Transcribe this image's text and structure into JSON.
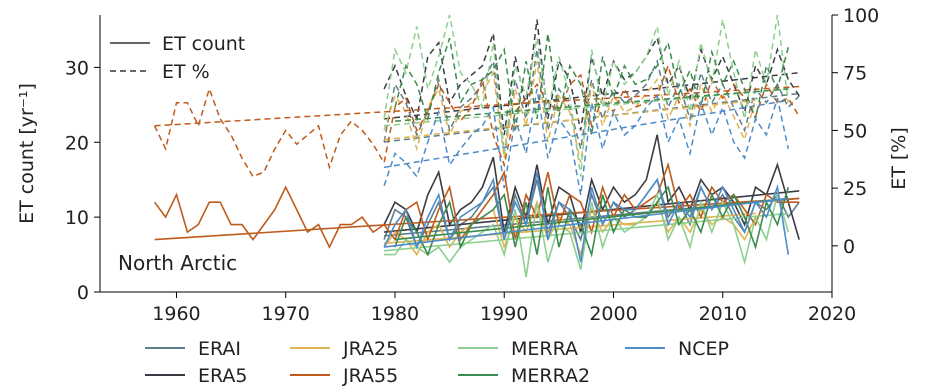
{
  "chart_data": {
    "type": "line",
    "annotation": "North Arctic",
    "left_axis": {
      "label": "ET count [yr⁻¹]",
      "ylim": [
        0,
        37
      ],
      "ticks": [
        "0",
        "10",
        "20",
        "30"
      ]
    },
    "right_axis": {
      "label": "ET [%]",
      "ylim": [
        -20,
        100
      ],
      "ticks": [
        "0",
        "25",
        "50",
        "75",
        "100"
      ]
    },
    "x_axis": {
      "xlim": [
        1953,
        2020
      ],
      "ticks": [
        "1960",
        "1970",
        "1980",
        "1990",
        "2000",
        "2010",
        "2020"
      ]
    },
    "style_legend": [
      {
        "label": "ET count",
        "dash": "solid"
      },
      {
        "label": "ET %",
        "dash": "dashed"
      }
    ],
    "series": [
      {
        "name": "ERAI",
        "color": "#5e7f8a",
        "count": {
          "start": 1979,
          "values": [
            7,
            11,
            10,
            6,
            9,
            12,
            7,
            9,
            10,
            12,
            14,
            7,
            13,
            9,
            15,
            8,
            12,
            10,
            7,
            13,
            9,
            12,
            10,
            11,
            13,
            15,
            10,
            12,
            9,
            14,
            11,
            13,
            10,
            8,
            12,
            11,
            13,
            10,
            12
          ],
          "trend": [
            7.5,
            12.5
          ]
        },
        "percent": {
          "start": 1979,
          "values": [
            45,
            70,
            62,
            48,
            58,
            72,
            50,
            60,
            64,
            70,
            80,
            40,
            72,
            55,
            85,
            50,
            68,
            60,
            42,
            72,
            55,
            68,
            62,
            65,
            70,
            80,
            60,
            70,
            55,
            75,
            62,
            70,
            60,
            50,
            68,
            62,
            70,
            60,
            65
          ],
          "trend": [
            45,
            66
          ]
        }
      },
      {
        "name": "ERA5",
        "color": "#3b3b45",
        "count": {
          "start": 1979,
          "values": [
            9,
            12,
            11,
            8,
            13,
            16,
            9,
            11,
            12,
            14,
            18,
            8,
            14,
            10,
            17,
            9,
            14,
            13,
            8,
            15,
            11,
            14,
            12,
            13,
            15,
            21,
            12,
            14,
            11,
            15,
            13,
            14,
            12,
            9,
            14,
            13,
            17,
            12,
            7
          ],
          "trend": [
            8,
            13.5
          ]
        },
        "percent": {
          "start": 1979,
          "values": [
            68,
            78,
            65,
            55,
            82,
            88,
            62,
            70,
            74,
            78,
            92,
            48,
            82,
            60,
            98,
            55,
            80,
            72,
            50,
            82,
            65,
            80,
            72,
            75,
            82,
            90,
            70,
            78,
            64,
            85,
            72,
            82,
            70,
            58,
            78,
            70,
            85,
            72,
            65
          ],
          "trend": [
            55,
            75
          ]
        }
      },
      {
        "name": "JRA25",
        "color": "#e0b350",
        "count": {
          "start": 1979,
          "values": [
            6,
            8,
            7,
            5,
            8,
            9,
            6,
            8,
            9,
            10,
            11,
            6,
            10,
            8,
            12,
            7,
            10,
            9,
            5,
            11,
            8,
            10,
            9,
            9,
            10,
            12,
            8,
            10,
            8,
            11,
            9,
            10,
            9,
            7,
            10
          ],
          "trend": [
            6.5,
            10.5
          ]
        },
        "percent": {
          "start": 1979,
          "values": [
            50,
            65,
            58,
            42,
            60,
            68,
            48,
            58,
            62,
            66,
            75,
            38,
            68,
            52,
            80,
            45,
            65,
            58,
            36,
            70,
            52,
            65,
            58,
            60,
            66,
            72,
            55,
            65,
            52,
            70,
            58,
            66,
            56,
            46,
            64
          ],
          "trend": [
            46,
            63
          ]
        }
      },
      {
        "name": "JRA55",
        "color": "#bf5b1c",
        "count": {
          "start": 1958,
          "values": [
            12,
            10,
            13,
            8,
            9,
            12,
            12,
            9,
            9,
            7,
            9,
            11,
            14,
            11,
            8,
            9,
            6,
            9,
            9,
            10,
            8,
            9,
            7,
            11,
            12,
            7,
            11,
            14,
            7,
            9,
            11,
            13,
            16,
            7,
            13,
            10,
            16,
            9,
            13,
            12,
            8,
            14,
            10,
            13,
            11,
            12,
            13,
            17,
            11,
            13,
            10,
            14,
            12,
            13,
            11,
            9,
            13,
            12,
            12,
            12
          ],
          "trend": [
            7,
            12.5
          ]
        },
        "percent": {
          "start": 1958,
          "values": [
            52,
            42,
            62,
            62,
            52,
            68,
            55,
            48,
            38,
            30,
            32,
            42,
            50,
            44,
            48,
            52,
            34,
            48,
            54,
            50,
            44,
            36,
            60,
            64,
            50,
            58,
            70,
            62,
            54,
            60,
            72,
            48,
            35,
            58,
            64,
            70,
            62,
            58,
            70,
            74,
            52,
            64,
            58,
            68,
            60,
            62,
            65,
            78,
            62,
            68,
            58,
            72,
            64,
            70,
            64,
            56,
            70,
            62,
            64,
            56
          ],
          "trend": [
            52,
            69
          ]
        }
      },
      {
        "name": "MERRA",
        "color": "#8ccf8e",
        "count": {
          "start": 1979,
          "values": [
            5,
            5,
            7,
            6,
            5,
            6,
            4,
            6,
            7,
            8,
            9,
            5,
            11,
            2,
            12,
            4,
            9,
            8,
            3,
            12,
            6,
            10,
            8,
            9,
            10,
            13,
            7,
            10,
            6,
            12,
            8,
            12,
            9,
            4,
            10,
            7,
            13,
            8
          ],
          "trend": [
            5.5,
            10.5
          ]
        },
        "percent": {
          "start": 1979,
          "values": [
            55,
            85,
            75,
            95,
            68,
            82,
            100,
            75,
            70,
            60,
            88,
            40,
            78,
            65,
            90,
            58,
            82,
            65,
            30,
            85,
            60,
            80,
            70,
            75,
            82,
            95,
            65,
            80,
            58,
            88,
            70,
            98,
            75,
            55,
            85,
            70,
            100,
            62
          ],
          "trend": [
            52,
            68
          ]
        }
      },
      {
        "name": "MERRA2",
        "color": "#3d8a4e",
        "count": {
          "start": 1980,
          "values": [
            6,
            10,
            8,
            5,
            9,
            12,
            6,
            9,
            10,
            11,
            13,
            6,
            12,
            5,
            14,
            6,
            11,
            9,
            5,
            13,
            8,
            11,
            10,
            10,
            12,
            14,
            9,
            11,
            8,
            13,
            10,
            13,
            10,
            6,
            12,
            9,
            14
          ],
          "trend": [
            7,
            12.5
          ]
        },
        "percent": {
          "start": 1980,
          "values": [
            60,
            78,
            70,
            55,
            75,
            90,
            62,
            70,
            72,
            76,
            85,
            50,
            80,
            55,
            92,
            56,
            78,
            70,
            48,
            82,
            64,
            78,
            70,
            72,
            78,
            88,
            66,
            76,
            60,
            84,
            70,
            80,
            68,
            55,
            78,
            68,
            86
          ],
          "trend": [
            54,
            68
          ]
        }
      },
      {
        "name": "NCEP",
        "color": "#4d8cc8",
        "count": {
          "start": 1979,
          "values": [
            6,
            9,
            11,
            6,
            10,
            13,
            7,
            10,
            11,
            12,
            15,
            7,
            12,
            9,
            16,
            7,
            12,
            11,
            4,
            14,
            9,
            12,
            11,
            11,
            13,
            15,
            9,
            12,
            10,
            14,
            11,
            14,
            11,
            8,
            12,
            10,
            14,
            5
          ],
          "trend": [
            6,
            12.5
          ]
        },
        "percent": {
          "start": 1979,
          "values": [
            26,
            40,
            36,
            30,
            45,
            58,
            35,
            42,
            48,
            52,
            60,
            25,
            55,
            40,
            68,
            38,
            55,
            48,
            22,
            62,
            42,
            58,
            48,
            52,
            60,
            65,
            45,
            55,
            40,
            62,
            48,
            60,
            45,
            38,
            55,
            48,
            64,
            42
          ],
          "trend": [
            34,
            63
          ]
        }
      }
    ]
  }
}
